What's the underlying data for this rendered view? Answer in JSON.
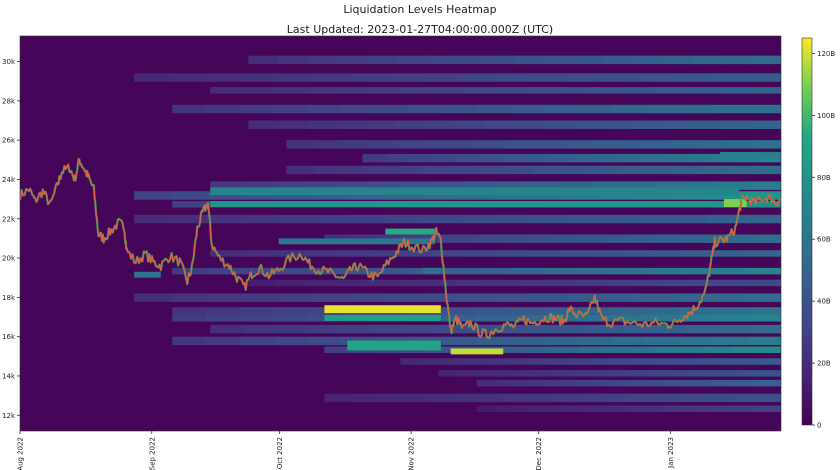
{
  "chart_data": {
    "type": "heatmap",
    "title": "Liquidation Levels Heatmap",
    "subtitle": "Last Updated: 2023-01-27T04:00:00.000Z (UTC)",
    "y_ticks": [
      "12k",
      "14k",
      "16k",
      "18k",
      "20k",
      "22k",
      "24k",
      "26k",
      "28k",
      "30k"
    ],
    "x_ticks": [
      "Aug 2022",
      "Sep 2022",
      "Oct 2022",
      "Nov 2022",
      "Dec 2022",
      "Jan 2023"
    ],
    "ylim": [
      11200,
      31300
    ],
    "colorbar": {
      "ticks": [
        "0",
        "20B",
        "40B",
        "60B",
        "80B",
        "100B",
        "120B"
      ],
      "max": 125
    },
    "price_series": [
      {
        "t": 0,
        "p": 23200
      },
      {
        "t": 0.012,
        "p": 23500
      },
      {
        "t": 0.02,
        "p": 22900
      },
      {
        "t": 0.03,
        "p": 23400
      },
      {
        "t": 0.04,
        "p": 22700
      },
      {
        "t": 0.05,
        "p": 23800
      },
      {
        "t": 0.055,
        "p": 24400
      },
      {
        "t": 0.065,
        "p": 24600
      },
      {
        "t": 0.072,
        "p": 24000
      },
      {
        "t": 0.078,
        "p": 25000
      },
      {
        "t": 0.085,
        "p": 24500
      },
      {
        "t": 0.09,
        "p": 24100
      },
      {
        "t": 0.097,
        "p": 23500
      },
      {
        "t": 0.103,
        "p": 21200
      },
      {
        "t": 0.11,
        "p": 21000
      },
      {
        "t": 0.12,
        "p": 21400
      },
      {
        "t": 0.13,
        "p": 21800
      },
      {
        "t": 0.137,
        "p": 21600
      },
      {
        "t": 0.14,
        "p": 20400
      },
      {
        "t": 0.152,
        "p": 19800
      },
      {
        "t": 0.165,
        "p": 20200
      },
      {
        "t": 0.175,
        "p": 19800
      },
      {
        "t": 0.185,
        "p": 19600
      },
      {
        "t": 0.197,
        "p": 20100
      },
      {
        "t": 0.21,
        "p": 19800
      },
      {
        "t": 0.22,
        "p": 18800
      },
      {
        "t": 0.226,
        "p": 19500
      },
      {
        "t": 0.233,
        "p": 21500
      },
      {
        "t": 0.24,
        "p": 22300
      },
      {
        "t": 0.247,
        "p": 22800
      },
      {
        "t": 0.252,
        "p": 20700
      },
      {
        "t": 0.262,
        "p": 20000
      },
      {
        "t": 0.275,
        "p": 19600
      },
      {
        "t": 0.285,
        "p": 19000
      },
      {
        "t": 0.295,
        "p": 18500
      },
      {
        "t": 0.305,
        "p": 19200
      },
      {
        "t": 0.315,
        "p": 19500
      },
      {
        "t": 0.327,
        "p": 19100
      },
      {
        "t": 0.34,
        "p": 19400
      },
      {
        "t": 0.355,
        "p": 20000
      },
      {
        "t": 0.37,
        "p": 20200
      },
      {
        "t": 0.38,
        "p": 19700
      },
      {
        "t": 0.392,
        "p": 19400
      },
      {
        "t": 0.405,
        "p": 19300
      },
      {
        "t": 0.415,
        "p": 19100
      },
      {
        "t": 0.425,
        "p": 18900
      },
      {
        "t": 0.435,
        "p": 19400
      },
      {
        "t": 0.445,
        "p": 19600
      },
      {
        "t": 0.458,
        "p": 19200
      },
      {
        "t": 0.47,
        "p": 19000
      },
      {
        "t": 0.482,
        "p": 19700
      },
      {
        "t": 0.495,
        "p": 20300
      },
      {
        "t": 0.505,
        "p": 20800
      },
      {
        "t": 0.515,
        "p": 20600
      },
      {
        "t": 0.53,
        "p": 20400
      },
      {
        "t": 0.54,
        "p": 20800
      },
      {
        "t": 0.547,
        "p": 21300
      },
      {
        "t": 0.553,
        "p": 20900
      },
      {
        "t": 0.56,
        "p": 18200
      },
      {
        "t": 0.566,
        "p": 16300
      },
      {
        "t": 0.573,
        "p": 16900
      },
      {
        "t": 0.582,
        "p": 16400
      },
      {
        "t": 0.592,
        "p": 16700
      },
      {
        "t": 0.605,
        "p": 16200
      },
      {
        "t": 0.615,
        "p": 16100
      },
      {
        "t": 0.625,
        "p": 16400
      },
      {
        "t": 0.638,
        "p": 16600
      },
      {
        "t": 0.65,
        "p": 16500
      },
      {
        "t": 0.662,
        "p": 16900
      },
      {
        "t": 0.672,
        "p": 16700
      },
      {
        "t": 0.685,
        "p": 16900
      },
      {
        "t": 0.695,
        "p": 17000
      },
      {
        "t": 0.705,
        "p": 16900
      },
      {
        "t": 0.715,
        "p": 16800
      },
      {
        "t": 0.722,
        "p": 17400
      },
      {
        "t": 0.732,
        "p": 17100
      },
      {
        "t": 0.745,
        "p": 17000
      },
      {
        "t": 0.755,
        "p": 18000
      },
      {
        "t": 0.765,
        "p": 16900
      },
      {
        "t": 0.775,
        "p": 16700
      },
      {
        "t": 0.79,
        "p": 16800
      },
      {
        "t": 0.805,
        "p": 16700
      },
      {
        "t": 0.82,
        "p": 16600
      },
      {
        "t": 0.835,
        "p": 16700
      },
      {
        "t": 0.85,
        "p": 16600
      },
      {
        "t": 0.86,
        "p": 16700
      },
      {
        "t": 0.87,
        "p": 17000
      },
      {
        "t": 0.88,
        "p": 17200
      },
      {
        "t": 0.89,
        "p": 17600
      },
      {
        "t": 0.9,
        "p": 18200
      },
      {
        "t": 0.907,
        "p": 19500
      },
      {
        "t": 0.913,
        "p": 20800
      },
      {
        "t": 0.922,
        "p": 20900
      },
      {
        "t": 0.93,
        "p": 21000
      },
      {
        "t": 0.94,
        "p": 21500
      },
      {
        "t": 0.948,
        "p": 22900
      },
      {
        "t": 0.955,
        "p": 23100
      },
      {
        "t": 0.965,
        "p": 22800
      },
      {
        "t": 0.975,
        "p": 23000
      },
      {
        "t": 0.985,
        "p": 23100
      },
      {
        "t": 0.993,
        "p": 22800
      },
      {
        "t": 1.0,
        "p": 23000
      }
    ],
    "bands": [
      {
        "y0": 29900,
        "y1": 30300,
        "s": 0.3,
        "v": 55
      },
      {
        "y0": 29000,
        "y1": 29400,
        "s": 0.15,
        "v": 45
      },
      {
        "y0": 28400,
        "y1": 28700,
        "s": 0.25,
        "v": 50
      },
      {
        "y0": 27400,
        "y1": 27800,
        "s": 0.2,
        "v": 60
      },
      {
        "y0": 26600,
        "y1": 27000,
        "s": 0.3,
        "v": 50
      },
      {
        "y0": 25600,
        "y1": 26000,
        "s": 0.35,
        "v": 58
      },
      {
        "y0": 24900,
        "y1": 25300,
        "s": 0.45,
        "v": 70
      },
      {
        "y0": 24300,
        "y1": 24700,
        "s": 0.35,
        "v": 55
      },
      {
        "y0": 23500,
        "y1": 23900,
        "s": 0.25,
        "v": 66
      },
      {
        "y0": 23000,
        "y1": 23400,
        "s": 0.15,
        "v": 80
      },
      {
        "y0": 22600,
        "y1": 22900,
        "s": 0.2,
        "v": 75
      },
      {
        "y0": 21800,
        "y1": 22200,
        "s": 0.15,
        "v": 50
      },
      {
        "y0": 20800,
        "y1": 21200,
        "s": 0.4,
        "v": 56
      },
      {
        "y0": 20100,
        "y1": 20400,
        "s": 0.25,
        "v": 50
      },
      {
        "y0": 19200,
        "y1": 19500,
        "s": 0.2,
        "v": 70
      },
      {
        "y0": 18600,
        "y1": 18900,
        "s": 0.3,
        "v": 35
      },
      {
        "y0": 17800,
        "y1": 18200,
        "s": 0.15,
        "v": 55
      },
      {
        "y0": 17100,
        "y1": 17500,
        "s": 0.2,
        "v": 60
      },
      {
        "y0": 16800,
        "y1": 17100,
        "s": 0.2,
        "v": 70
      },
      {
        "y0": 16200,
        "y1": 16600,
        "s": 0.25,
        "v": 55
      },
      {
        "y0": 15600,
        "y1": 16000,
        "s": 0.2,
        "v": 65
      },
      {
        "y0": 15200,
        "y1": 15500,
        "s": 0.4,
        "v": 75
      },
      {
        "y0": 14600,
        "y1": 14900,
        "s": 0.5,
        "v": 45
      },
      {
        "y0": 14000,
        "y1": 14300,
        "s": 0.55,
        "v": 40
      },
      {
        "y0": 13500,
        "y1": 13800,
        "s": 0.6,
        "v": 50
      },
      {
        "y0": 12700,
        "y1": 13100,
        "s": 0.4,
        "v": 38
      },
      {
        "y0": 12200,
        "y1": 12500,
        "s": 0.6,
        "v": 30
      }
    ],
    "hot_spots": [
      {
        "x0": 0.4,
        "x1": 0.553,
        "y0": 17200,
        "y1": 17600,
        "v": 122
      },
      {
        "x0": 0.4,
        "x1": 0.553,
        "y0": 16800,
        "y1": 17100,
        "v": 88
      },
      {
        "x0": 0.43,
        "x1": 0.553,
        "y0": 15300,
        "y1": 15800,
        "v": 92
      },
      {
        "x0": 0.566,
        "x1": 0.635,
        "y0": 15100,
        "y1": 15400,
        "v": 118
      },
      {
        "x0": 0.25,
        "x1": 0.945,
        "y0": 22600,
        "y1": 22900,
        "v": 82
      },
      {
        "x0": 0.25,
        "x1": 0.945,
        "y0": 23200,
        "y1": 23600,
        "v": 70
      },
      {
        "x0": 0.925,
        "x1": 0.955,
        "y0": 22600,
        "y1": 23000,
        "v": 110
      },
      {
        "x0": 0.48,
        "x1": 0.545,
        "y0": 21200,
        "y1": 21500,
        "v": 95
      },
      {
        "x0": 0.34,
        "x1": 0.545,
        "y0": 20700,
        "y1": 21000,
        "v": 62
      },
      {
        "x0": 0.53,
        "x1": 0.553,
        "y0": 19200,
        "y1": 19500,
        "v": 60
      },
      {
        "x0": 0.92,
        "x1": 1.0,
        "y0": 25100,
        "y1": 25400,
        "v": 66
      },
      {
        "x0": 0.15,
        "x1": 0.185,
        "y0": 19000,
        "y1": 19300,
        "v": 60
      }
    ]
  }
}
